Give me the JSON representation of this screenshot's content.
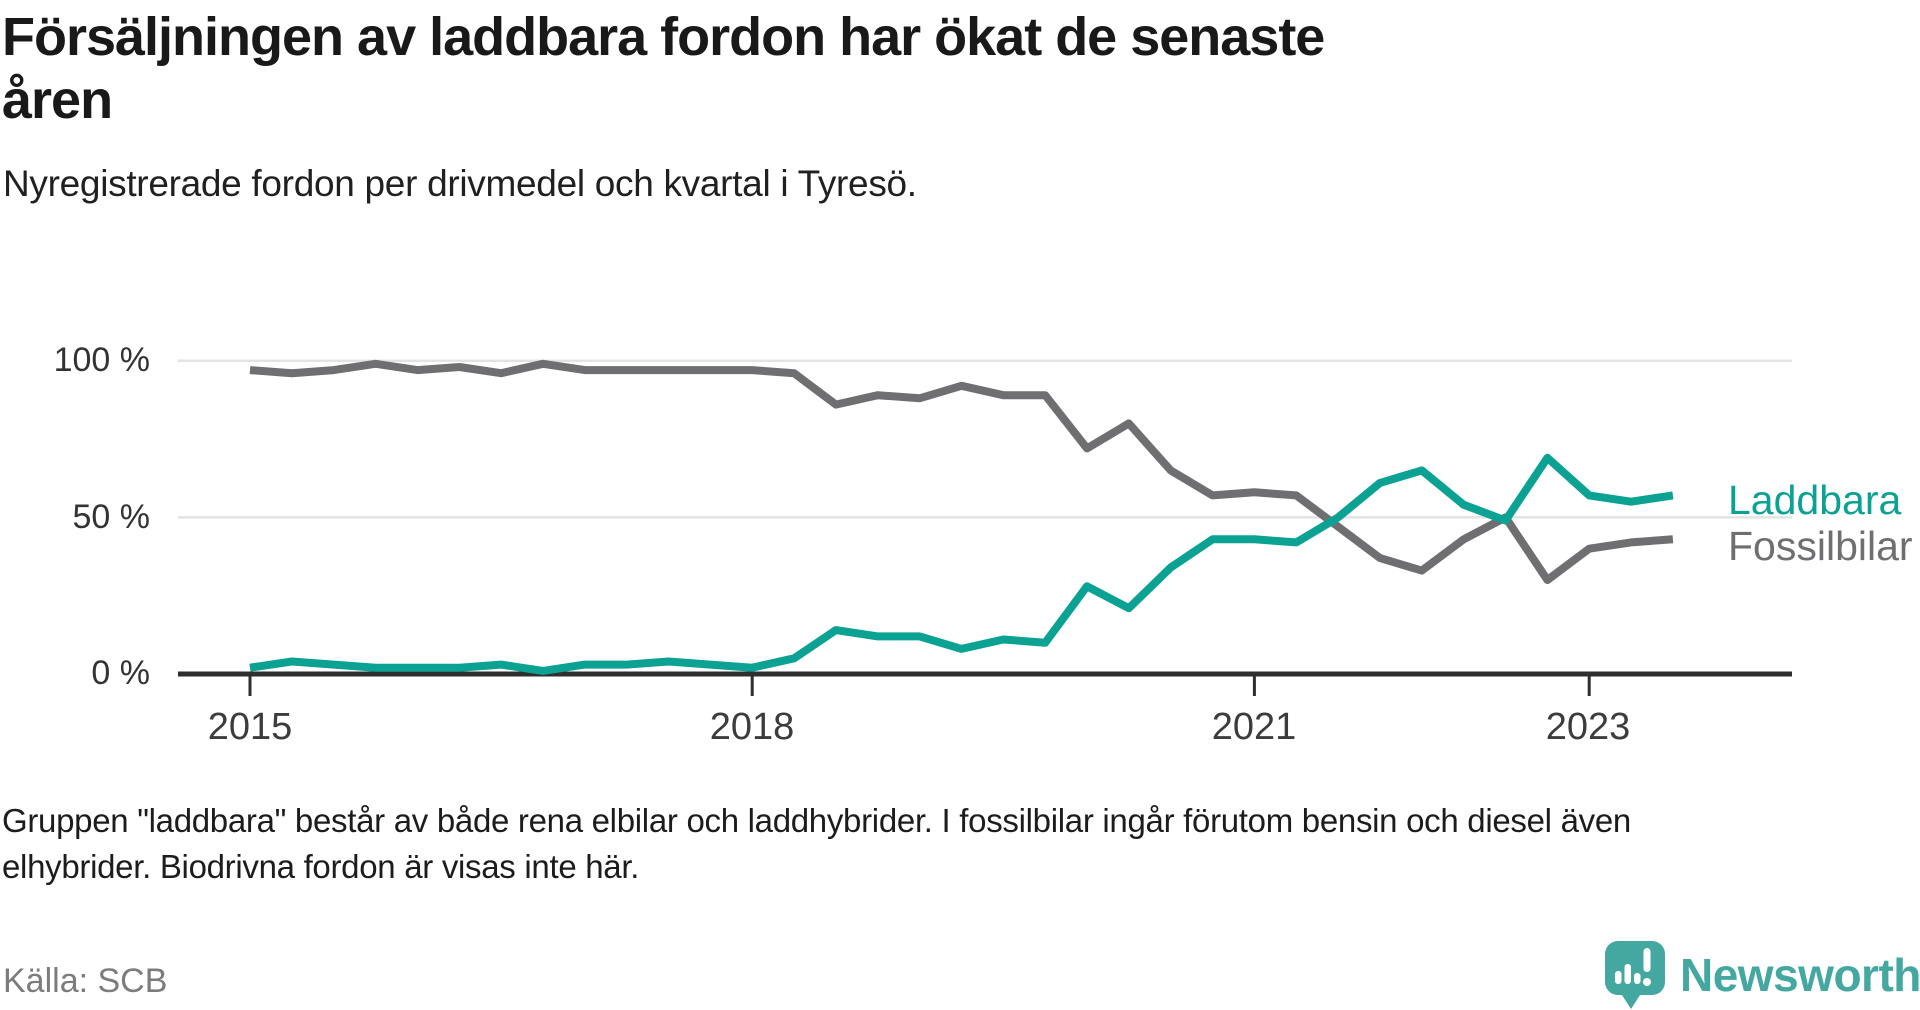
{
  "header": {
    "title_line1": "Försäljningen av laddbara fordon har ökat de senaste",
    "title_line2": "åren",
    "subtitle": "Nyregistrerade fordon per drivmedel och kvartal i Tyresö."
  },
  "chart_data": {
    "type": "line",
    "title": "Försäljningen av laddbara fordon har ökat de senaste åren",
    "subtitle": "Nyregistrerade fordon per drivmedel och kvartal i Tyresö.",
    "unit": "%",
    "ylim": [
      0,
      100
    ],
    "grid": true,
    "legend_position": "right-of-line-ends",
    "quarters": [
      "2015 Q1",
      "2015 Q2",
      "2015 Q3",
      "2015 Q4",
      "2016 Q1",
      "2016 Q2",
      "2016 Q3",
      "2016 Q4",
      "2017 Q1",
      "2017 Q2",
      "2017 Q3",
      "2017 Q4",
      "2018 Q1",
      "2018 Q2",
      "2018 Q3",
      "2018 Q4",
      "2019 Q1",
      "2019 Q2",
      "2019 Q3",
      "2019 Q4",
      "2020 Q1",
      "2020 Q2",
      "2020 Q3",
      "2020 Q4",
      "2021 Q1",
      "2021 Q2",
      "2021 Q3",
      "2021 Q4",
      "2022 Q1",
      "2022 Q2",
      "2022 Q3",
      "2022 Q4",
      "2023 Q1",
      "2023 Q2",
      "2023 Q3"
    ],
    "series": [
      {
        "name": "Laddbara",
        "color": "#0ba294",
        "values": [
          2,
          4,
          3,
          2,
          2,
          2,
          3,
          1,
          3,
          3,
          4,
          3,
          2,
          5,
          14,
          12,
          12,
          8,
          11,
          10,
          28,
          21,
          34,
          43,
          43,
          42,
          50,
          61,
          65,
          54,
          49,
          69,
          57,
          55,
          57
        ]
      },
      {
        "name": "Fossilbilar",
        "color": "#6f6f72",
        "values": [
          97,
          96,
          97,
          99,
          97,
          98,
          96,
          99,
          97,
          97,
          97,
          97,
          97,
          96,
          86,
          89,
          88,
          92,
          89,
          89,
          72,
          80,
          65,
          57,
          58,
          57,
          47,
          37,
          33,
          43,
          50,
          30,
          40,
          42,
          43
        ]
      }
    ],
    "yticks": [
      {
        "label": "100 %",
        "value": 100
      },
      {
        "label": "50 %",
        "value": 50
      },
      {
        "label": "0 %",
        "value": 0
      }
    ],
    "xticks": [
      {
        "label": "2015",
        "quarter_index": 0
      },
      {
        "label": "2018",
        "quarter_index": 12
      },
      {
        "label": "2021",
        "quarter_index": 24
      },
      {
        "label": "2023",
        "quarter_index": 32
      }
    ]
  },
  "footer": {
    "note_line1": "Gruppen \"laddbara\" består av både rena elbilar och laddhybrider. I fossilbilar ingår förutom bensin och diesel även",
    "note_line2": "elhybrider. Biodrivna fordon är visas inte här.",
    "source": "Källa: SCB"
  },
  "branding": {
    "logo_text": "Newsworthy",
    "logo_color": "#44a8a1",
    "icon_name": "speech-bubble-bar-chart-icon"
  }
}
